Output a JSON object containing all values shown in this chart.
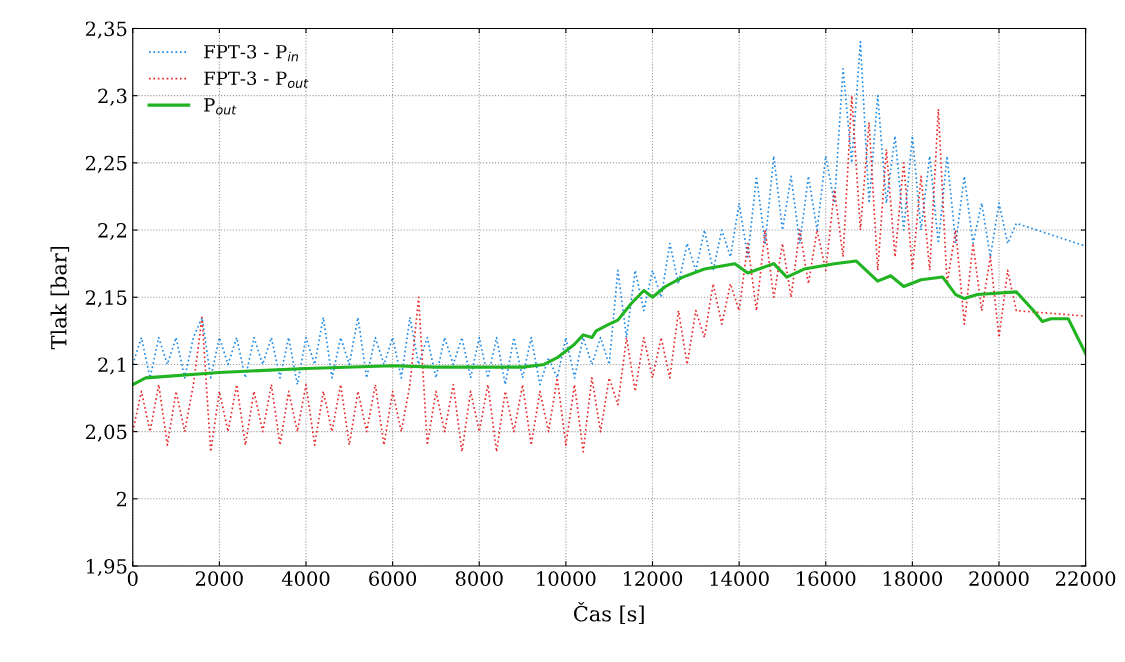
{
  "chart_data": {
    "type": "line",
    "xlabel": "Čas [s]",
    "ylabel": "Tlak [bar]",
    "xlim": [
      0,
      22000
    ],
    "xticks": [
      0,
      2000,
      4000,
      6000,
      8000,
      10000,
      12000,
      14000,
      16000,
      18000,
      20000,
      22000
    ],
    "ylim": [
      1.95,
      2.35
    ],
    "yticks": [
      {
        "value": 1.95,
        "label": "1,95"
      },
      {
        "value": 2,
        "label": "2"
      },
      {
        "value": 2.05,
        "label": "2,05"
      },
      {
        "value": 2.1,
        "label": "2,1"
      },
      {
        "value": 2.15,
        "label": "2,15"
      },
      {
        "value": 2.2,
        "label": "2,2"
      },
      {
        "value": 2.25,
        "label": "2,25"
      },
      {
        "value": 2.3,
        "label": "2,3"
      },
      {
        "value": 2.35,
        "label": "2,35"
      }
    ],
    "grid": true,
    "legend": "top left",
    "series": [
      {
        "name": "FPT-3 - P$_{in}$",
        "color": "#1e8be6",
        "line_style": "dotted",
        "x": [
          0,
          200,
          400,
          600,
          800,
          1000,
          1200,
          1400,
          1600,
          1800,
          2000,
          2200,
          2400,
          2600,
          2800,
          3000,
          3200,
          3400,
          3600,
          3800,
          4000,
          4200,
          4400,
          4600,
          4800,
          5000,
          5200,
          5400,
          5600,
          5800,
          6000,
          6200,
          6400,
          6600,
          6800,
          7000,
          7200,
          7400,
          7600,
          7800,
          8000,
          8200,
          8400,
          8600,
          8800,
          9000,
          9200,
          9400,
          9600,
          9800,
          10000,
          10200,
          10400,
          10600,
          10800,
          11000,
          11200,
          11400,
          11600,
          11800,
          12000,
          12200,
          12400,
          12600,
          12800,
          13000,
          13200,
          13400,
          13600,
          13800,
          14000,
          14200,
          14400,
          14600,
          14800,
          15000,
          15200,
          15400,
          15600,
          15800,
          16000,
          16200,
          16400,
          16600,
          16800,
          17000,
          17200,
          17400,
          17600,
          17800,
          18000,
          18200,
          18400,
          18600,
          18800,
          19000,
          19200,
          19400,
          19600,
          19800,
          20000,
          20200,
          20400,
          22000
        ],
        "values": [
          2.1,
          2.12,
          2.09,
          2.12,
          2.1,
          2.12,
          2.09,
          2.12,
          2.135,
          2.09,
          2.12,
          2.1,
          2.12,
          2.09,
          2.12,
          2.1,
          2.12,
          2.09,
          2.12,
          2.085,
          2.12,
          2.1,
          2.135,
          2.09,
          2.12,
          2.1,
          2.135,
          2.09,
          2.12,
          2.1,
          2.12,
          2.09,
          2.135,
          2.1,
          2.12,
          2.09,
          2.12,
          2.1,
          2.12,
          2.09,
          2.12,
          2.09,
          2.12,
          2.085,
          2.12,
          2.09,
          2.12,
          2.085,
          2.105,
          2.09,
          2.12,
          2.09,
          2.12,
          2.1,
          2.12,
          2.1,
          2.17,
          2.12,
          2.17,
          2.14,
          2.17,
          2.15,
          2.19,
          2.16,
          2.19,
          2.17,
          2.2,
          2.17,
          2.2,
          2.18,
          2.22,
          2.18,
          2.24,
          2.19,
          2.255,
          2.2,
          2.24,
          2.19,
          2.24,
          2.2,
          2.255,
          2.22,
          2.32,
          2.25,
          2.34,
          2.22,
          2.3,
          2.22,
          2.27,
          2.2,
          2.27,
          2.2,
          2.255,
          2.19,
          2.255,
          2.19,
          2.24,
          2.19,
          2.22,
          2.18,
          2.22,
          2.19,
          2.205,
          2.188
        ]
      },
      {
        "name": "FPT-3 - P$_{out}$",
        "color": "#e8282a",
        "line_style": "dotted",
        "x": [
          0,
          200,
          400,
          600,
          800,
          1000,
          1200,
          1400,
          1600,
          1800,
          2000,
          2200,
          2400,
          2600,
          2800,
          3000,
          3200,
          3400,
          3600,
          3800,
          4000,
          4200,
          4400,
          4600,
          4800,
          5000,
          5200,
          5400,
          5600,
          5800,
          6000,
          6200,
          6400,
          6600,
          6800,
          7000,
          7200,
          7400,
          7600,
          7800,
          8000,
          8200,
          8400,
          8600,
          8800,
          9000,
          9200,
          9400,
          9600,
          9800,
          10000,
          10200,
          10400,
          10600,
          10800,
          11000,
          11200,
          11400,
          11600,
          11800,
          12000,
          12200,
          12400,
          12600,
          12800,
          13000,
          13200,
          13400,
          13600,
          13800,
          14000,
          14200,
          14400,
          14600,
          14800,
          15000,
          15200,
          15400,
          15600,
          15800,
          16000,
          16200,
          16400,
          16600,
          16800,
          17000,
          17200,
          17400,
          17600,
          17800,
          18000,
          18200,
          18400,
          18600,
          18800,
          19000,
          19200,
          19400,
          19600,
          19800,
          20000,
          20200,
          20400,
          22000
        ],
        "values": [
          2.05,
          2.08,
          2.05,
          2.085,
          2.04,
          2.08,
          2.05,
          2.085,
          2.135,
          2.035,
          2.08,
          2.05,
          2.085,
          2.04,
          2.08,
          2.05,
          2.085,
          2.04,
          2.08,
          2.05,
          2.085,
          2.04,
          2.08,
          2.05,
          2.085,
          2.04,
          2.08,
          2.05,
          2.085,
          2.04,
          2.08,
          2.05,
          2.085,
          2.15,
          2.04,
          2.08,
          2.05,
          2.085,
          2.035,
          2.08,
          2.05,
          2.085,
          2.035,
          2.08,
          2.05,
          2.085,
          2.04,
          2.08,
          2.05,
          2.09,
          2.04,
          2.085,
          2.035,
          2.09,
          2.05,
          2.09,
          2.07,
          2.12,
          2.08,
          2.12,
          2.09,
          2.12,
          2.09,
          2.14,
          2.1,
          2.14,
          2.12,
          2.16,
          2.13,
          2.16,
          2.14,
          2.19,
          2.14,
          2.2,
          2.15,
          2.19,
          2.15,
          2.2,
          2.16,
          2.2,
          2.17,
          2.23,
          2.18,
          2.3,
          2.2,
          2.28,
          2.17,
          2.26,
          2.18,
          2.25,
          2.17,
          2.24,
          2.17,
          2.29,
          2.16,
          2.2,
          2.13,
          2.19,
          2.14,
          2.18,
          2.12,
          2.17,
          2.14,
          2.136
        ]
      },
      {
        "name": "P$_{out}$",
        "color": "#22b322",
        "line_style": "solid",
        "x": [
          0,
          300,
          2000,
          4000,
          6000,
          7000,
          9000,
          9500,
          9800,
          10200,
          10400,
          10600,
          10700,
          11000,
          11200,
          11500,
          11800,
          12000,
          12300,
          12700,
          13200,
          13900,
          14200,
          14800,
          15100,
          15500,
          16200,
          16700,
          17200,
          17500,
          17800,
          18200,
          18700,
          19000,
          19200,
          19500,
          20400,
          20800,
          21000,
          21200,
          21600,
          22000
        ],
        "values": [
          2.085,
          2.09,
          2.094,
          2.097,
          2.099,
          2.098,
          2.098,
          2.1,
          2.105,
          2.115,
          2.122,
          2.12,
          2.125,
          2.13,
          2.133,
          2.145,
          2.155,
          2.15,
          2.158,
          2.165,
          2.171,
          2.175,
          2.168,
          2.175,
          2.165,
          2.171,
          2.175,
          2.177,
          2.162,
          2.166,
          2.158,
          2.163,
          2.165,
          2.152,
          2.149,
          2.152,
          2.154,
          2.14,
          2.132,
          2.134,
          2.134,
          2.108
        ]
      }
    ]
  }
}
